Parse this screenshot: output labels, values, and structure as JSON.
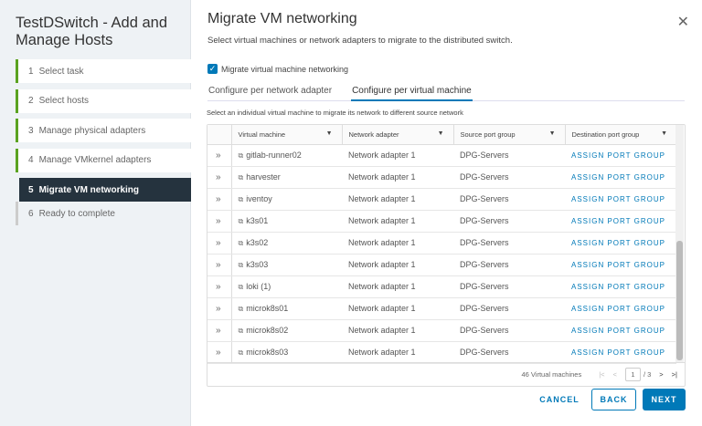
{
  "sidebar": {
    "title": "TestDSwitch - Add and Manage Hosts",
    "steps": [
      {
        "n": "1",
        "label": "Select task"
      },
      {
        "n": "2",
        "label": "Select hosts"
      },
      {
        "n": "3",
        "label": "Manage physical adapters"
      },
      {
        "n": "4",
        "label": "Manage VMkernel adapters"
      },
      {
        "n": "5",
        "label": "Migrate VM networking"
      },
      {
        "n": "6",
        "label": "Ready to complete"
      }
    ]
  },
  "main": {
    "title": "Migrate VM networking",
    "subtitle": "Select virtual machines or network adapters to migrate to the distributed switch.",
    "checkbox_label": "Migrate virtual machine networking",
    "checkbox_checked": true,
    "tabs": [
      "Configure per network adapter",
      "Configure per virtual machine"
    ],
    "selected_tab": 1,
    "hint": "Select an individual virtual machine to migrate its network to different source network",
    "columns": [
      "Virtual machine",
      "Network adapter",
      "Source port group",
      "Destination port group"
    ],
    "rows": [
      [
        "gitlab-runner02",
        "Network adapter 1",
        "DPG-Servers",
        "ASSIGN PORT GROUP"
      ],
      [
        "harvester",
        "Network adapter 1",
        "DPG-Servers",
        "ASSIGN PORT GROUP"
      ],
      [
        "iventoy",
        "Network adapter 1",
        "DPG-Servers",
        "ASSIGN PORT GROUP"
      ],
      [
        "k3s01",
        "Network adapter 1",
        "DPG-Servers",
        "ASSIGN PORT GROUP"
      ],
      [
        "k3s02",
        "Network adapter 1",
        "DPG-Servers",
        "ASSIGN PORT GROUP"
      ],
      [
        "k3s03",
        "Network adapter 1",
        "DPG-Servers",
        "ASSIGN PORT GROUP"
      ],
      [
        "loki (1)",
        "Network adapter 1",
        "DPG-Servers",
        "ASSIGN PORT GROUP"
      ],
      [
        "microk8s01",
        "Network adapter 1",
        "DPG-Servers",
        "ASSIGN PORT GROUP"
      ],
      [
        "microk8s02",
        "Network adapter 1",
        "DPG-Servers",
        "ASSIGN PORT GROUP"
      ],
      [
        "microk8s03",
        "Network adapter 1",
        "DPG-Servers",
        "ASSIGN PORT GROUP"
      ]
    ],
    "footer": {
      "count": "46 Virtual machines",
      "page": "1",
      "pages": "/ 3"
    },
    "buttons": {
      "cancel": "CANCEL",
      "back": "BACK",
      "next": "NEXT"
    }
  },
  "colors": {
    "accent": "#0079b8",
    "active_step": "#25333e",
    "progress": "#5aa220"
  }
}
